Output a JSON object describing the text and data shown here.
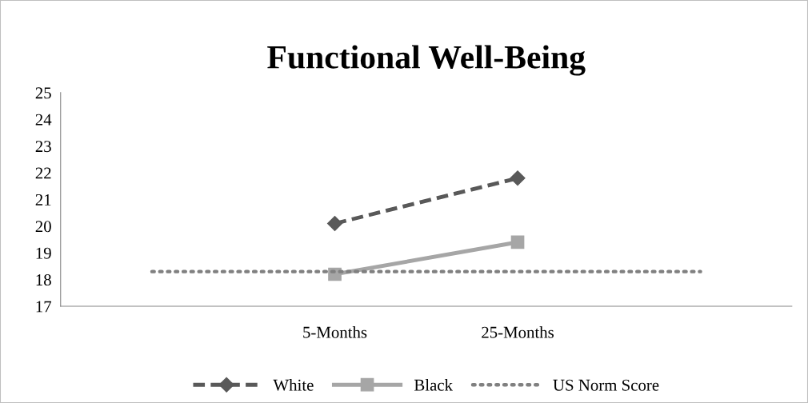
{
  "chart_data": {
    "type": "line",
    "title": "Functional Well-Being",
    "categories": [
      null,
      "5-Months",
      "25-Months",
      null
    ],
    "series": [
      {
        "name": "White",
        "color": "#595959",
        "values": [
          null,
          20.1,
          21.8,
          null
        ],
        "marker": "diamond",
        "line_style": "dashed"
      },
      {
        "name": "Black",
        "color": "#a6a6a6",
        "values": [
          null,
          18.2,
          19.4,
          null
        ],
        "marker": "square",
        "line_style": "solid"
      },
      {
        "name": "US Norm Score",
        "color": "#808080",
        "values": [
          18.3,
          18.3,
          18.3,
          18.3
        ],
        "marker": "none",
        "line_style": "dotted"
      }
    ],
    "ylim": [
      17,
      25
    ],
    "yticks": [
      17,
      18,
      19,
      20,
      21,
      22,
      23,
      24,
      25
    ],
    "grid": false,
    "legend": "bottom"
  }
}
